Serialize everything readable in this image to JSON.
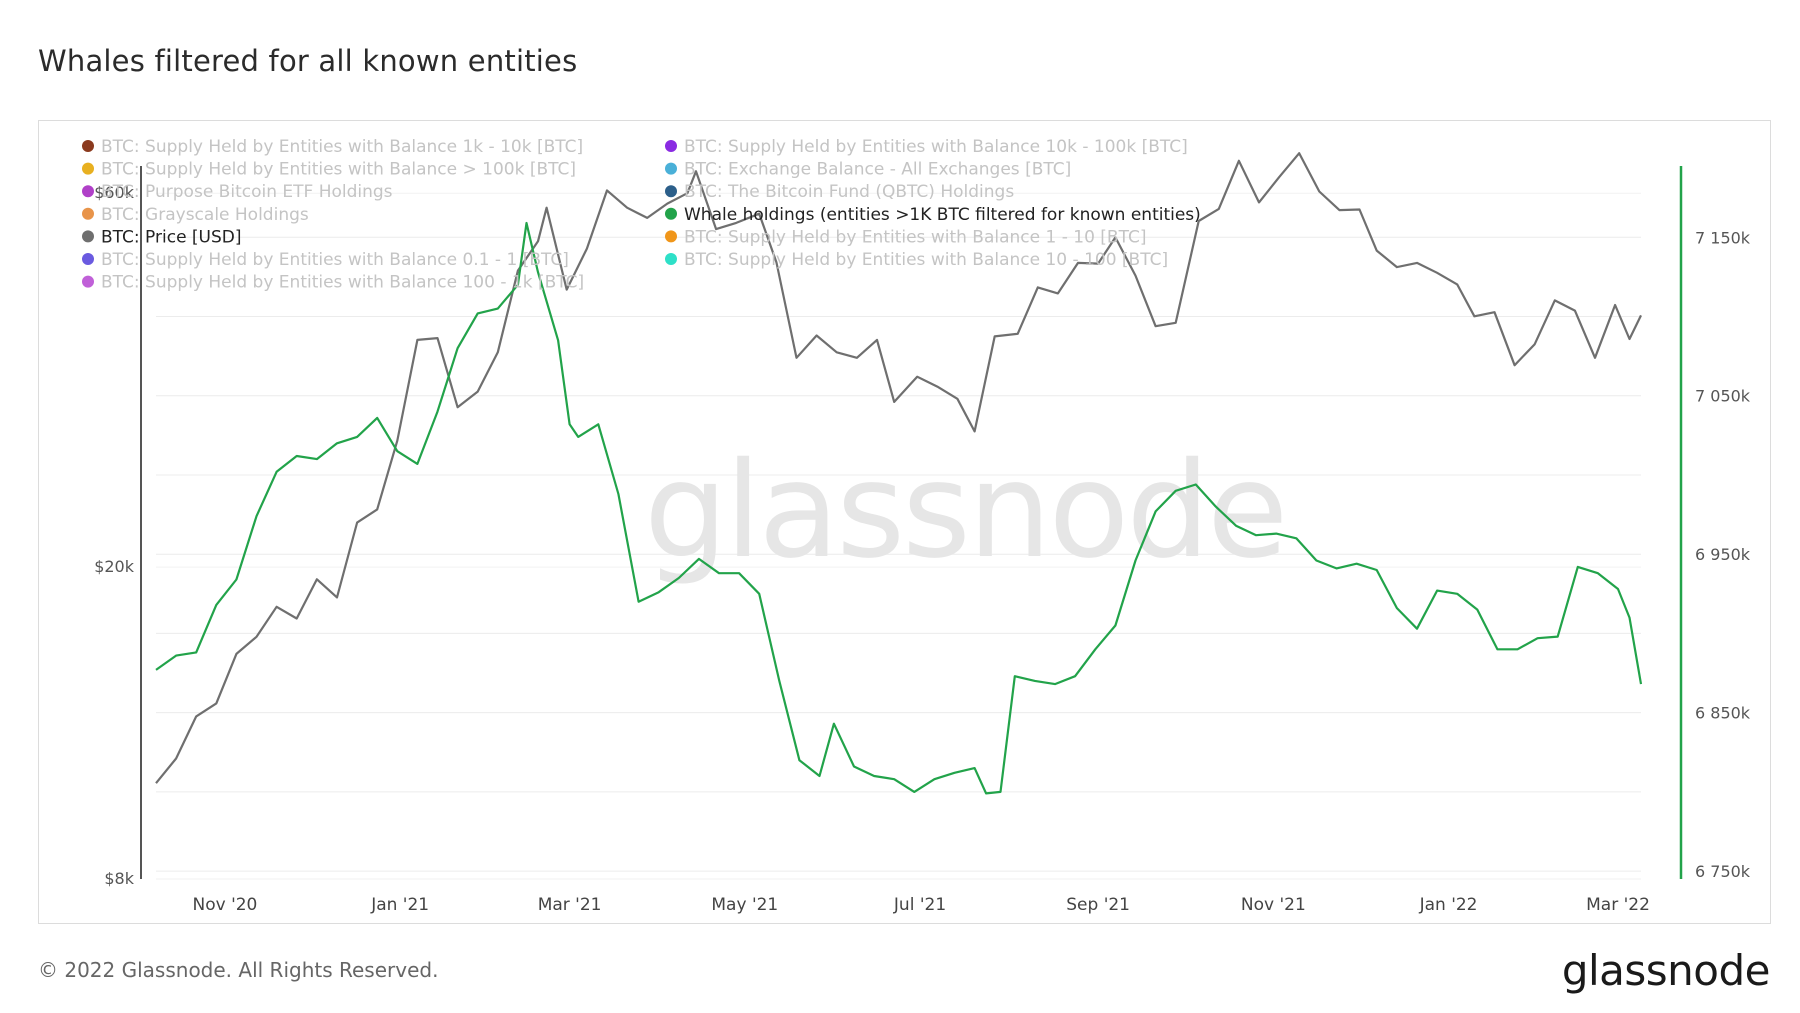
{
  "title": "Whales filtered for all known entities",
  "footer": "© 2022 Glassnode. All Rights Reserved.",
  "brand": "glassnode",
  "watermark": "glassnode",
  "colors": {
    "price": "#6f6f6f",
    "whale": "#22a34a",
    "axis_left": "#555555",
    "axis_right": "#22a34a",
    "grid": "#ececec"
  },
  "legend": [
    {
      "label": "BTC: Supply Held by Entities with Balance 1k - 10k [BTC]",
      "color": "#8b3a1e",
      "active": false
    },
    {
      "label": "BTC: Supply Held by Entities with Balance 10k - 100k [BTC]",
      "color": "#8a2be2",
      "active": false
    },
    {
      "label": "BTC: Supply Held by Entities with Balance > 100k [BTC]",
      "color": "#e8b020",
      "active": false
    },
    {
      "label": "BTC: Exchange Balance - All Exchanges [BTC]",
      "color": "#4ab0d8",
      "active": false
    },
    {
      "label": "BTC: Purpose Bitcoin ETF Holdings",
      "color": "#b040c8",
      "active": false
    },
    {
      "label": "BTC: The Bitcoin Fund (QBTC) Holdings",
      "color": "#2c5f8a",
      "active": false
    },
    {
      "label": "BTC: Grayscale Holdings",
      "color": "#e8944a",
      "active": false
    },
    {
      "label": "Whale holdings (entities >1K BTC filtered for known entities)",
      "color": "#22a34a",
      "active": true
    },
    {
      "label": "BTC: Price [USD]",
      "color": "#6f6f6f",
      "active": true
    },
    {
      "label": "BTC: Supply Held by Entities with Balance 1 - 10 [BTC]",
      "color": "#f0961a",
      "active": false
    },
    {
      "label": "BTC: Supply Held by Entities with Balance 0.1 - 1 [BTC]",
      "color": "#6a5ae0",
      "active": false
    },
    {
      "label": "BTC: Supply Held by Entities with Balance 10 - 100 [BTC]",
      "color": "#2ee0c8",
      "active": false
    },
    {
      "label": "BTC: Supply Held by Entities with Balance 100 - 1k [BTC]",
      "color": "#c060d8",
      "active": false
    }
  ],
  "chart_data": {
    "type": "line",
    "x_ticks": [
      "Nov '20",
      "Jan '21",
      "Mar '21",
      "May '21",
      "Jul '21",
      "Sep '21",
      "Nov '21",
      "Jan '22",
      "Mar '22"
    ],
    "y_left": {
      "scale": "log",
      "ticks": [
        "$60k",
        "$20k",
        "$8k"
      ],
      "tick_values": [
        60000,
        20000,
        8000
      ],
      "range": [
        8000,
        65000
      ]
    },
    "y_right": {
      "scale": "linear",
      "ticks": [
        "7 150k",
        "7 050k",
        "6 950k",
        "6 850k",
        "6 750k"
      ],
      "tick_values": [
        7150000,
        7050000,
        6950000,
        6850000,
        6750000
      ],
      "range": [
        6745000,
        7195000
      ]
    },
    "x_range": [
      "2020-10-08",
      "2022-03-09"
    ],
    "series": [
      {
        "name": "BTC: Price [USD]",
        "axis": "left",
        "points": [
          [
            "2020-10-08",
            10600
          ],
          [
            "2020-10-15",
            11400
          ],
          [
            "2020-10-22",
            12900
          ],
          [
            "2020-10-29",
            13400
          ],
          [
            "2020-11-05",
            15500
          ],
          [
            "2020-11-12",
            16300
          ],
          [
            "2020-11-19",
            17800
          ],
          [
            "2020-11-26",
            17200
          ],
          [
            "2020-12-03",
            19300
          ],
          [
            "2020-12-10",
            18300
          ],
          [
            "2020-12-17",
            22800
          ],
          [
            "2020-12-24",
            23700
          ],
          [
            "2020-12-31",
            29000
          ],
          [
            "2021-01-07",
            39000
          ],
          [
            "2021-01-14",
            39200
          ],
          [
            "2021-01-21",
            32000
          ],
          [
            "2021-01-28",
            33500
          ],
          [
            "2021-02-04",
            37600
          ],
          [
            "2021-02-11",
            47800
          ],
          [
            "2021-02-18",
            52100
          ],
          [
            "2021-02-21",
            57500
          ],
          [
            "2021-02-28",
            45200
          ],
          [
            "2021-03-07",
            51000
          ],
          [
            "2021-03-14",
            60500
          ],
          [
            "2021-03-21",
            57500
          ],
          [
            "2021-03-28",
            55800
          ],
          [
            "2021-04-04",
            58200
          ],
          [
            "2021-04-11",
            60000
          ],
          [
            "2021-04-14",
            64000
          ],
          [
            "2021-04-21",
            54000
          ],
          [
            "2021-04-28",
            55000
          ],
          [
            "2021-05-06",
            56500
          ],
          [
            "2021-05-12",
            49000
          ],
          [
            "2021-05-19",
            37000
          ],
          [
            "2021-05-26",
            39500
          ],
          [
            "2021-06-02",
            37600
          ],
          [
            "2021-06-09",
            37000
          ],
          [
            "2021-06-16",
            39000
          ],
          [
            "2021-06-22",
            32500
          ],
          [
            "2021-06-30",
            35000
          ],
          [
            "2021-07-07",
            34000
          ],
          [
            "2021-07-14",
            32800
          ],
          [
            "2021-07-20",
            29800
          ],
          [
            "2021-07-27",
            39400
          ],
          [
            "2021-08-04",
            39700
          ],
          [
            "2021-08-11",
            45500
          ],
          [
            "2021-08-18",
            44700
          ],
          [
            "2021-08-25",
            48900
          ],
          [
            "2021-09-01",
            48800
          ],
          [
            "2021-09-07",
            52700
          ],
          [
            "2021-09-14",
            47100
          ],
          [
            "2021-09-21",
            40600
          ],
          [
            "2021-09-28",
            41000
          ],
          [
            "2021-10-06",
            55300
          ],
          [
            "2021-10-13",
            57300
          ],
          [
            "2021-10-20",
            66000
          ],
          [
            "2021-10-27",
            58400
          ],
          [
            "2021-11-03",
            62900
          ],
          [
            "2021-11-10",
            67500
          ],
          [
            "2021-11-17",
            60300
          ],
          [
            "2021-11-24",
            57100
          ],
          [
            "2021-12-01",
            57200
          ],
          [
            "2021-12-07",
            50700
          ],
          [
            "2021-12-14",
            48300
          ],
          [
            "2021-12-21",
            48900
          ],
          [
            "2021-12-28",
            47500
          ],
          [
            "2022-01-04",
            45900
          ],
          [
            "2022-01-10",
            41800
          ],
          [
            "2022-01-17",
            42300
          ],
          [
            "2022-01-24",
            36200
          ],
          [
            "2022-01-31",
            38500
          ],
          [
            "2022-02-07",
            43800
          ],
          [
            "2022-02-14",
            42500
          ],
          [
            "2022-02-21",
            37000
          ],
          [
            "2022-02-28",
            43200
          ],
          [
            "2022-03-05",
            39100
          ],
          [
            "2022-03-09",
            41900
          ]
        ]
      },
      {
        "name": "Whale holdings (entities >1K BTC filtered for known entities)",
        "axis": "right",
        "points": [
          [
            "2020-10-08",
            6877000
          ],
          [
            "2020-10-15",
            6886000
          ],
          [
            "2020-10-22",
            6888000
          ],
          [
            "2020-10-29",
            6918000
          ],
          [
            "2020-11-05",
            6934000
          ],
          [
            "2020-11-12",
            6974000
          ],
          [
            "2020-11-19",
            7002000
          ],
          [
            "2020-11-26",
            7012000
          ],
          [
            "2020-12-03",
            7010000
          ],
          [
            "2020-12-10",
            7020000
          ],
          [
            "2020-12-17",
            7024000
          ],
          [
            "2020-12-24",
            7036000
          ],
          [
            "2020-12-31",
            7015000
          ],
          [
            "2021-01-07",
            7007000
          ],
          [
            "2021-01-14",
            7040000
          ],
          [
            "2021-01-21",
            7080000
          ],
          [
            "2021-01-28",
            7102000
          ],
          [
            "2021-02-04",
            7105000
          ],
          [
            "2021-02-11",
            7120000
          ],
          [
            "2021-02-14",
            7159000
          ],
          [
            "2021-02-18",
            7128000
          ],
          [
            "2021-02-25",
            7085000
          ],
          [
            "2021-03-01",
            7032000
          ],
          [
            "2021-03-04",
            7024000
          ],
          [
            "2021-03-11",
            7032000
          ],
          [
            "2021-03-18",
            6988000
          ],
          [
            "2021-03-25",
            6920000
          ],
          [
            "2021-04-01",
            6926000
          ],
          [
            "2021-04-08",
            6935000
          ],
          [
            "2021-04-15",
            6947000
          ],
          [
            "2021-04-22",
            6938000
          ],
          [
            "2021-04-29",
            6938000
          ],
          [
            "2021-05-06",
            6925000
          ],
          [
            "2021-05-13",
            6870000
          ],
          [
            "2021-05-20",
            6820000
          ],
          [
            "2021-05-27",
            6810000
          ],
          [
            "2021-06-01",
            6843000
          ],
          [
            "2021-06-08",
            6816000
          ],
          [
            "2021-06-15",
            6810000
          ],
          [
            "2021-06-22",
            6808000
          ],
          [
            "2021-06-29",
            6800000
          ],
          [
            "2021-07-06",
            6808000
          ],
          [
            "2021-07-13",
            6812000
          ],
          [
            "2021-07-20",
            6815000
          ],
          [
            "2021-07-24",
            6799000
          ],
          [
            "2021-07-29",
            6800000
          ],
          [
            "2021-08-03",
            6873000
          ],
          [
            "2021-08-10",
            6870000
          ],
          [
            "2021-08-17",
            6868000
          ],
          [
            "2021-08-24",
            6873000
          ],
          [
            "2021-08-31",
            6890000
          ],
          [
            "2021-09-07",
            6905000
          ],
          [
            "2021-09-14",
            6946000
          ],
          [
            "2021-09-21",
            6977000
          ],
          [
            "2021-09-28",
            6990000
          ],
          [
            "2021-10-05",
            6994000
          ],
          [
            "2021-10-12",
            6980000
          ],
          [
            "2021-10-19",
            6968000
          ],
          [
            "2021-10-26",
            6962000
          ],
          [
            "2021-11-02",
            6963000
          ],
          [
            "2021-11-09",
            6960000
          ],
          [
            "2021-11-16",
            6946000
          ],
          [
            "2021-11-23",
            6941000
          ],
          [
            "2021-11-30",
            6944000
          ],
          [
            "2021-12-07",
            6940000
          ],
          [
            "2021-12-14",
            6916000
          ],
          [
            "2021-12-21",
            6903000
          ],
          [
            "2021-12-28",
            6927000
          ],
          [
            "2022-01-04",
            6925000
          ],
          [
            "2022-01-11",
            6915000
          ],
          [
            "2022-01-18",
            6890000
          ],
          [
            "2022-01-25",
            6890000
          ],
          [
            "2022-02-01",
            6897000
          ],
          [
            "2022-02-08",
            6898000
          ],
          [
            "2022-02-15",
            6942000
          ],
          [
            "2022-02-22",
            6938000
          ],
          [
            "2022-03-01",
            6928000
          ],
          [
            "2022-03-05",
            6910000
          ],
          [
            "2022-03-09",
            6868000
          ]
        ]
      }
    ]
  }
}
